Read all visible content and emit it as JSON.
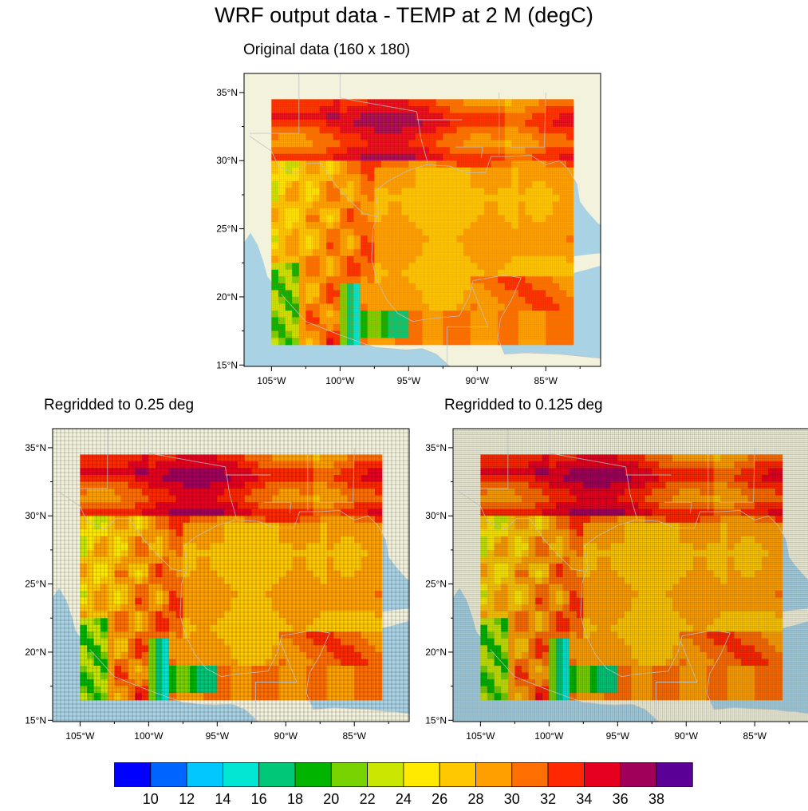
{
  "figure": {
    "title": "WRF output data - TEMP at 2 M (degC)",
    "colors": {
      "ocean": "#a9d3e4",
      "land": "#f3f2dc",
      "frame": "#000000",
      "border_lines": "#bfbfbf"
    }
  },
  "panels": [
    {
      "id": "original",
      "subtitle": "Original data (160 x 180)",
      "grid_style": "fine-orange",
      "lon_ticks": [
        "105°W",
        "100°W",
        "95°W",
        "90°W",
        "85°W"
      ],
      "lat_ticks": [
        "35°N",
        "30°N",
        "25°N",
        "20°N",
        "15°N"
      ]
    },
    {
      "id": "regrid-025",
      "subtitle": "Regridded to 0.25 deg",
      "grid_style": "coarse-black",
      "lon_ticks": [
        "105°W",
        "100°W",
        "95°W",
        "90°W",
        "85°W"
      ],
      "lat_ticks": [
        "35°N",
        "30°N",
        "25°N",
        "20°N",
        "15°N"
      ]
    },
    {
      "id": "regrid-0125",
      "subtitle": "Regridded to 0.125 deg",
      "grid_style": "fine-black",
      "lon_ticks": [
        "105°W",
        "100°W",
        "95°W",
        "90°W",
        "85°W"
      ],
      "lat_ticks": [
        "35°N",
        "30°N",
        "25°N",
        "20°N",
        "15°N"
      ]
    }
  ],
  "chart_data": {
    "type": "heatmap",
    "title": "WRF output data - TEMP at 2 M (degC)",
    "map_extent": {
      "lon": [
        -107,
        -81
      ],
      "lat": [
        14.9,
        36.4
      ]
    },
    "data_extent": {
      "lon": [
        -105,
        -83
      ],
      "lat": [
        16.8,
        34.5
      ]
    },
    "units": "degC",
    "colorbar": {
      "labels": [
        "10",
        "12",
        "14",
        "16",
        "18",
        "20",
        "22",
        "24",
        "26",
        "28",
        "30",
        "32",
        "34",
        "36",
        "38"
      ],
      "colors": [
        "#0000ff",
        "#0064ff",
        "#00c8ff",
        "#00e6d2",
        "#00c878",
        "#00b400",
        "#78d200",
        "#c8e600",
        "#ffea00",
        "#ffc800",
        "#ffa000",
        "#ff6e00",
        "#ff2800",
        "#e60020",
        "#a0005a",
        "#5a0096"
      ]
    }
  }
}
